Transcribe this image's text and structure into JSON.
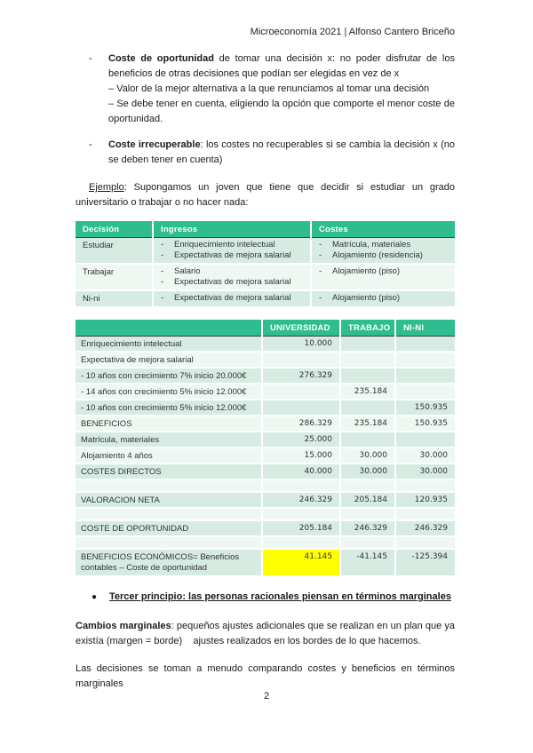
{
  "header": {
    "title": "Microeconomía 2021 | Alfonso Cantero Briceño"
  },
  "bullets": [
    {
      "marker": "-",
      "lead": "Coste de oportunidad",
      "rest": " de tomar una decisión x: no poder disfrutar de los beneficios de otras decisiones que podían ser elegidas en vez de x",
      "sublines": [
        "– Valor de la mejor alternativa a la que renunciamos al tomar una decisión",
        "– Se debe tener en cuenta, eligiendo la opción que comporte el menor coste de oportunidad."
      ]
    },
    {
      "marker": "-",
      "lead": "Coste irrecuperable",
      "rest": ": los costes no recuperables si se cambia la decisión x (no se deben tener en cuenta)"
    }
  ],
  "example": {
    "label": "Ejemplo",
    "text": ": Supongamos un joven que tiene que decidir si estudiar un grado universitario o trabajar o no hacer nada:"
  },
  "table1": {
    "headers": [
      "Decisión",
      "Ingresos",
      "Costes"
    ],
    "rows": [
      {
        "decision": "Estudiar",
        "ingresos": [
          "Enriquecimiento intelectual",
          "Expectativas de mejora salarial"
        ],
        "costes": [
          "Matrícula, materiales",
          "Alojamiento (residencia)"
        ]
      },
      {
        "decision": "Trabajar",
        "ingresos": [
          "Salario",
          "Expectativas de mejora salarial"
        ],
        "costes": [
          "Alojamiento (piso)"
        ]
      },
      {
        "decision": "Ni-ni",
        "ingresos": [
          "Expectativas de mejora salarial"
        ],
        "costes": [
          "Alojamiento (piso)"
        ]
      }
    ]
  },
  "table2": {
    "headers": [
      "",
      "UNIVERSIDAD",
      "TRABAJO",
      "NI-NI"
    ],
    "rows": [
      {
        "label": "Enriquecimiento intelectual",
        "universidad": "10.000",
        "trabajo": "",
        "nini": ""
      },
      {
        "label": "Expectativa de mejora salarial",
        "universidad": "",
        "trabajo": "",
        "nini": ""
      },
      {
        "label": "- 10 años con crecimiento 7% inicio 20.000€",
        "universidad": "276.329",
        "trabajo": "",
        "nini": ""
      },
      {
        "label": "- 14 años con crecimiento 5% inicio 12.000€",
        "universidad": "",
        "trabajo": "235.184",
        "nini": ""
      },
      {
        "label": "- 10 años con crecimiento 5% inicio 12.000€",
        "universidad": "",
        "trabajo": "",
        "nini": "150.935"
      },
      {
        "label": "BENEFICIOS",
        "universidad": "286.329",
        "trabajo": "235.184",
        "nini": "150.935"
      },
      {
        "label": "Matrícula, materiales",
        "universidad": "25.000",
        "trabajo": "",
        "nini": ""
      },
      {
        "label": "Alojamiento 4 años",
        "universidad": "15.000",
        "trabajo": "30.000",
        "nini": "30.000"
      },
      {
        "label": "COSTES DIRECTOS",
        "universidad": "40.000",
        "trabajo": "30.000",
        "nini": "30.000"
      },
      {
        "label": "",
        "universidad": "",
        "trabajo": "",
        "nini": ""
      },
      {
        "label": "VALORACION NETA",
        "universidad": "246.329",
        "trabajo": "205.184",
        "nini": "120.935"
      },
      {
        "label": "",
        "universidad": "",
        "trabajo": "",
        "nini": ""
      },
      {
        "label": "COSTE DE OPORTUNIDAD",
        "universidad": "205.184",
        "trabajo": "246.329",
        "nini": "246.329"
      },
      {
        "label": "",
        "universidad": "",
        "trabajo": "",
        "nini": ""
      },
      {
        "label": "BENEFICIOS ECONÓMICOS= Beneficios contables – Coste de oportunidad",
        "universidad": "41.145",
        "trabajo": "-41.145",
        "nini": "-125.394",
        "highlight": true
      }
    ]
  },
  "principle": {
    "marker": "●",
    "text": "Tercer principio: las personas racionales piensan en términos marginales"
  },
  "marginal_changes": {
    "lead": "Cambios marginales",
    "rest": ": pequeños ajustes adicionales que se realizan en un plan que ya existía (margen = borde)    ajustes realizados en los bordes de lo que hacemos."
  },
  "closing": "Las decisiones se toman a menudo comparando costes y beneficios en términos marginales",
  "page_number": "2",
  "colors": {
    "header_green": "#2dbd8e",
    "row_green": "#d6ece3",
    "row_pale": "#eef7f2",
    "highlight_yellow": "#ffff00"
  }
}
